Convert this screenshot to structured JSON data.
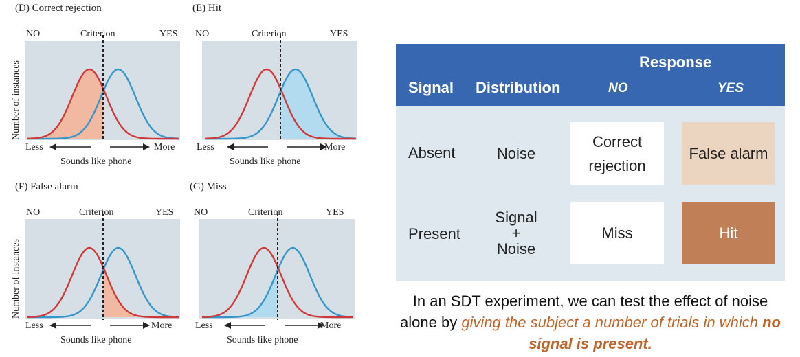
{
  "panels": [
    {
      "id": "D",
      "title": "(D) Correct rejection",
      "shade": "correct-rejection",
      "no": "NO",
      "criterion": "Criterion",
      "yes": "YES",
      "ylabel": "Number of instances",
      "less": "Less",
      "more": "More",
      "xlabel": "Sounds like phone"
    },
    {
      "id": "E",
      "title": "(E) Hit",
      "shade": "hit",
      "no": "NO",
      "criterion": "Criterion",
      "yes": "YES",
      "ylabel": "",
      "less": "Less",
      "more": "More",
      "xlabel": "Sounds like phone"
    },
    {
      "id": "F",
      "title": "(F) False alarm",
      "shade": "false-alarm",
      "no": "NO",
      "criterion": "Criterion",
      "yes": "YES",
      "ylabel": "Number of instances",
      "less": "Less",
      "more": "More",
      "xlabel": "Sounds like phone"
    },
    {
      "id": "G",
      "title": "(G) Miss",
      "shade": "miss",
      "no": "NO",
      "criterion": "Criterion",
      "yes": "YES",
      "ylabel": "",
      "less": "Less",
      "more": "More",
      "xlabel": "Sounds like phone"
    }
  ],
  "colors": {
    "noise_curve": "#d0393a",
    "signal_curve": "#3796c9",
    "plot_bg": "#d6dfe5",
    "noise_fill": "#f2b9a2",
    "signal_fill": "#b3dbef",
    "header_bg": "#3867b1",
    "table_bg": "#dfe8ef",
    "false_alarm_cell": "#ecd5c0",
    "hit_cell": "#c07f57",
    "caption_highlight": "#c0642a"
  },
  "table": {
    "response": "Response",
    "signal": "Signal",
    "distribution": "Distribution",
    "no": "NO",
    "yes": "YES",
    "rows": [
      {
        "signal": "Absent",
        "distribution": "Noise",
        "no_cell": "Correct rejection",
        "yes_cell": "False alarm"
      },
      {
        "signal": "Present",
        "distribution_line1": "Signal",
        "distribution_line2": "+",
        "distribution_line3": "Noise",
        "no_cell": "Miss",
        "yes_cell": "Hit"
      }
    ]
  },
  "caption": {
    "part1": "In an SDT experiment, we can test the effect of noise alone by ",
    "part2": "giving the subject a number of trials in which ",
    "part3": "no signal is present."
  }
}
